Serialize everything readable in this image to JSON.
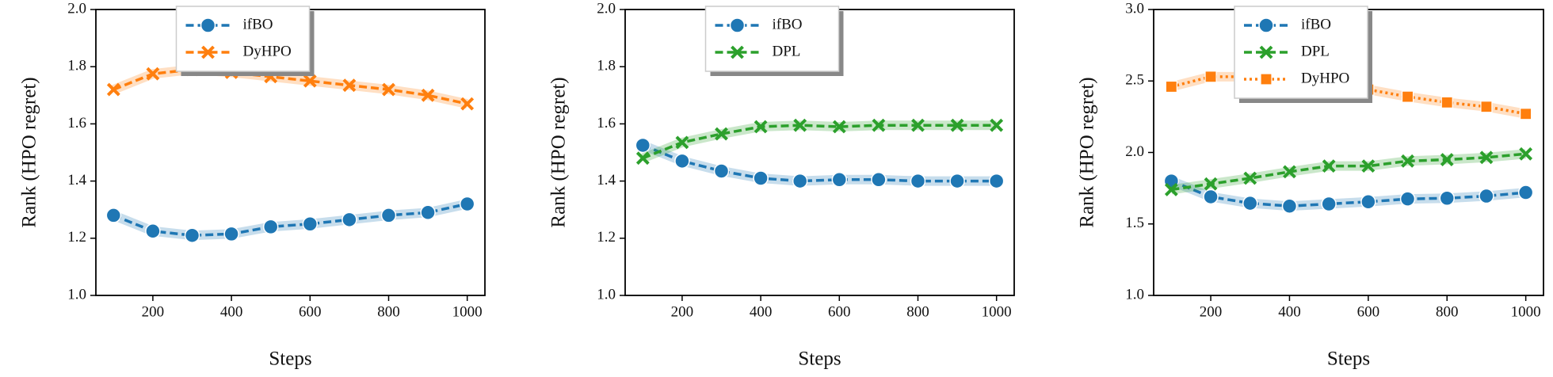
{
  "chart_data": [
    {
      "type": "line",
      "xlabel": "Steps",
      "ylabel": "Rank (HPO regret)",
      "legend": "upper center",
      "x": [
        100,
        200,
        300,
        400,
        500,
        600,
        700,
        800,
        900,
        1000
      ],
      "xlim": [
        55,
        1045
      ],
      "xticks": [
        200,
        400,
        600,
        800,
        1000
      ],
      "ylim": [
        1.0,
        2.0
      ],
      "yticks": [
        {
          "value": 1.0,
          "label": "1.0"
        },
        1.2,
        1.4,
        1.6,
        1.8,
        {
          "value": 2.0,
          "label": "2.0"
        }
      ],
      "series": [
        {
          "name": "ifBO",
          "color": "#1f77b4",
          "marker": "circle",
          "linestyle": "dashed",
          "values": [
            1.28,
            1.225,
            1.21,
            1.215,
            1.24,
            1.25,
            1.265,
            1.28,
            1.29,
            1.32
          ]
        },
        {
          "name": "DyHPO",
          "color": "#ff7f0e",
          "marker": "x",
          "linestyle": "dashed",
          "values": [
            1.72,
            1.775,
            1.79,
            1.78,
            1.765,
            1.75,
            1.735,
            1.72,
            1.7,
            1.67
          ]
        }
      ]
    },
    {
      "type": "line",
      "xlabel": "Steps",
      "ylabel": "Rank (HPO regret)",
      "legend": "upper center",
      "x": [
        100,
        200,
        300,
        400,
        500,
        600,
        700,
        800,
        900,
        1000
      ],
      "xlim": [
        55,
        1045
      ],
      "xticks": [
        200,
        400,
        600,
        800,
        1000
      ],
      "ylim": [
        1.0,
        2.0
      ],
      "yticks": [
        {
          "value": 1.0,
          "label": "1.0"
        },
        1.2,
        1.4,
        1.6,
        1.8,
        {
          "value": 2.0,
          "label": "2.0"
        }
      ],
      "series": [
        {
          "name": "ifBO",
          "color": "#1f77b4",
          "marker": "circle",
          "linestyle": "dashed",
          "values": [
            1.525,
            1.47,
            1.435,
            1.41,
            1.4,
            1.405,
            1.405,
            1.4,
            1.4,
            1.4
          ]
        },
        {
          "name": "DPL",
          "color": "#2ca02c",
          "marker": "x",
          "linestyle": "dashed",
          "values": [
            1.48,
            1.535,
            1.565,
            1.59,
            1.595,
            1.59,
            1.595,
            1.595,
            1.595,
            1.595
          ]
        }
      ]
    },
    {
      "type": "line",
      "xlabel": "Steps",
      "ylabel": "Rank (HPO regret)",
      "legend": "upper center",
      "x": [
        100,
        200,
        300,
        400,
        500,
        600,
        700,
        800,
        900,
        1000
      ],
      "xlim": [
        55,
        1045
      ],
      "xticks": [
        200,
        400,
        600,
        800,
        1000
      ],
      "ylim": [
        1.0,
        3.0
      ],
      "yticks": [
        {
          "value": 1.0,
          "label": "1.0"
        },
        1.5,
        {
          "value": 2.0,
          "label": "2.0"
        },
        2.5,
        {
          "value": 3.0,
          "label": "3.0"
        }
      ],
      "series": [
        {
          "name": "ifBO",
          "color": "#1f77b4",
          "marker": "circle",
          "linestyle": "dashed",
          "values": [
            1.8,
            1.69,
            1.645,
            1.625,
            1.64,
            1.655,
            1.675,
            1.68,
            1.695,
            1.72
          ]
        },
        {
          "name": "DPL",
          "color": "#2ca02c",
          "marker": "x",
          "linestyle": "dashed",
          "values": [
            1.74,
            1.78,
            1.82,
            1.865,
            1.905,
            1.905,
            1.94,
            1.95,
            1.965,
            1.99
          ]
        },
        {
          "name": "DyHPO",
          "color": "#ff7f0e",
          "marker": "square",
          "linestyle": "dotted",
          "values": [
            2.46,
            2.53,
            2.53,
            2.52,
            2.48,
            2.44,
            2.39,
            2.35,
            2.32,
            2.27
          ]
        }
      ]
    }
  ]
}
